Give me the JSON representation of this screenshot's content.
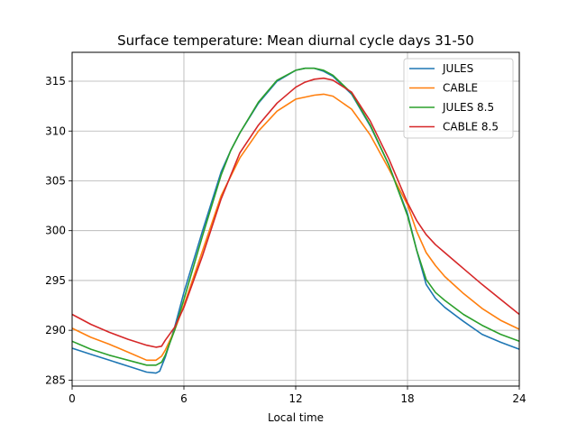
{
  "chart_data": {
    "type": "line",
    "title": "Surface temperature: Mean diurnal cycle days 31-50",
    "xlabel": "Local time",
    "ylabel": "",
    "xlim": [
      0,
      24
    ],
    "ylim": [
      284.4,
      317.9
    ],
    "xticks": [
      0,
      6,
      12,
      18,
      24
    ],
    "yticks": [
      285,
      290,
      295,
      300,
      305,
      310,
      315
    ],
    "grid": true,
    "legend_position": "top-right",
    "series": [
      {
        "name": "JULES",
        "color": "#1f77b4",
        "x": [
          0,
          1,
          2,
          3,
          4,
          4.5,
          4.7,
          5,
          5.5,
          6,
          7,
          8,
          8.5,
          9,
          10,
          11,
          12,
          12.5,
          13,
          13.5,
          14,
          15,
          16,
          17,
          18,
          18.5,
          19,
          19.5,
          20,
          21,
          22,
          23,
          24
        ],
        "y": [
          288.2,
          287.6,
          287.0,
          286.4,
          285.8,
          285.7,
          285.9,
          287.3,
          290.3,
          293.8,
          300.0,
          305.9,
          308.0,
          309.8,
          312.8,
          315.0,
          316.1,
          316.3,
          316.3,
          316.0,
          315.5,
          313.7,
          310.5,
          306.6,
          301.7,
          298.0,
          294.6,
          293.2,
          292.3,
          290.9,
          289.6,
          288.8,
          288.1
        ]
      },
      {
        "name": "CABLE",
        "color": "#ff7f0e",
        "x": [
          0,
          1,
          2,
          3,
          4,
          4.5,
          4.8,
          5,
          5.5,
          6,
          7,
          8,
          9,
          10,
          11,
          12,
          13,
          13.5,
          14,
          15,
          16,
          17,
          18,
          18.5,
          19,
          19.5,
          20,
          21,
          22,
          23,
          24
        ],
        "y": [
          290.2,
          289.3,
          288.6,
          287.8,
          287.0,
          287.0,
          287.4,
          288.0,
          290.0,
          292.5,
          298.0,
          303.5,
          307.3,
          310.0,
          312.0,
          313.2,
          313.6,
          313.7,
          313.5,
          312.2,
          309.6,
          306.2,
          302.6,
          299.9,
          297.8,
          296.5,
          295.4,
          293.7,
          292.2,
          291.0,
          290.1
        ]
      },
      {
        "name": "JULES 8.5",
        "color": "#2ca02c",
        "x": [
          0,
          1,
          2,
          3,
          4,
          4.5,
          4.8,
          5,
          5.5,
          6,
          7,
          8,
          8.5,
          9,
          10,
          11,
          12,
          12.5,
          13,
          13.5,
          14,
          15,
          16,
          17,
          18,
          18.5,
          19,
          19.5,
          20,
          21,
          22,
          23,
          24
        ],
        "y": [
          288.9,
          288.1,
          287.5,
          287.0,
          286.5,
          286.5,
          286.8,
          287.5,
          290.0,
          293.1,
          299.5,
          305.6,
          308.0,
          309.8,
          312.9,
          315.1,
          316.1,
          316.3,
          316.3,
          316.1,
          315.6,
          313.8,
          310.6,
          306.6,
          301.5,
          298.0,
          295.1,
          293.8,
          293.0,
          291.6,
          290.5,
          289.6,
          288.9
        ]
      },
      {
        "name": "CABLE 8.5",
        "color": "#d62728",
        "x": [
          0,
          1,
          2,
          3,
          4,
          4.5,
          4.8,
          5,
          5.5,
          6,
          7,
          8,
          9,
          10,
          11,
          12,
          12.5,
          13,
          13.5,
          14,
          15,
          16,
          17,
          18,
          18.5,
          19,
          19.5,
          20,
          21,
          22,
          23,
          24
        ],
        "y": [
          291.6,
          290.6,
          289.8,
          289.1,
          288.5,
          288.3,
          288.4,
          289.0,
          290.3,
          292.3,
          297.5,
          303.2,
          307.8,
          310.6,
          312.8,
          314.4,
          314.9,
          315.2,
          315.3,
          315.1,
          313.9,
          311.0,
          307.2,
          302.8,
          301.0,
          299.6,
          298.6,
          297.8,
          296.2,
          294.6,
          293.1,
          291.6
        ]
      }
    ]
  }
}
